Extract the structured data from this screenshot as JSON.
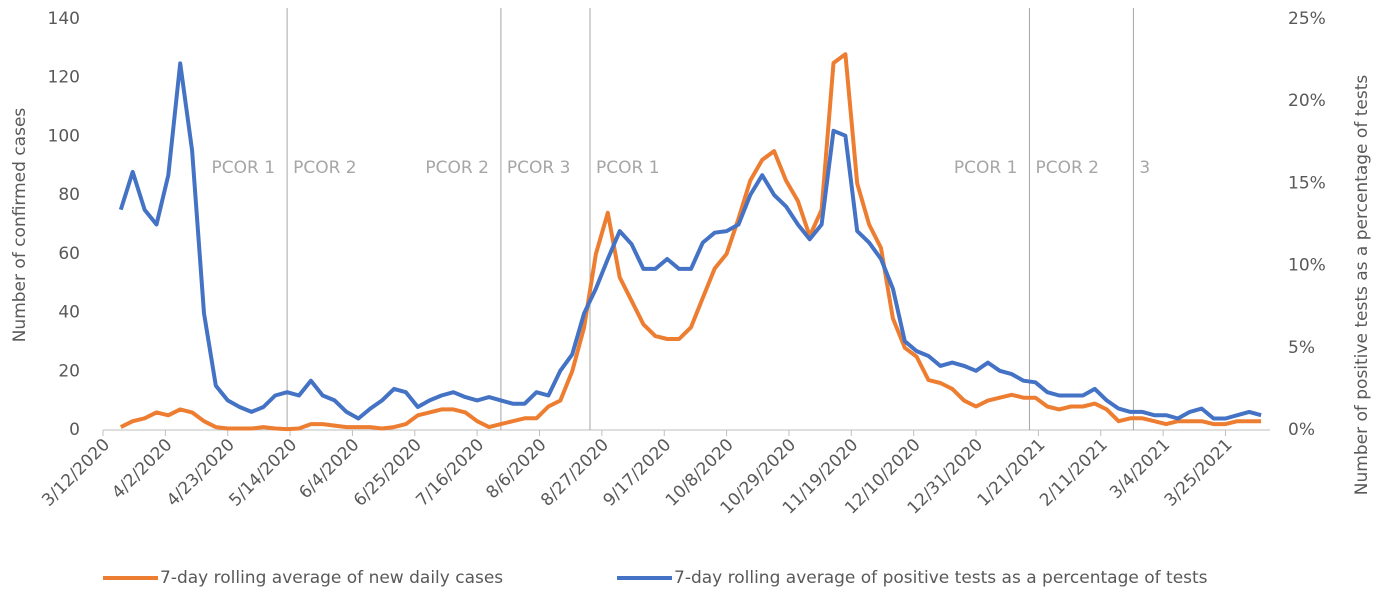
{
  "chart_data": {
    "type": "line",
    "y_label": "Number of confirmed cases",
    "y2_label": "Number of positive tests as a percentage of tests",
    "xlim": [
      "3/12/2020",
      "4/9/2021"
    ],
    "xticks": [
      "3/12/2020",
      "4/2/2020",
      "4/23/2020",
      "5/14/2020",
      "6/4/2020",
      "6/25/2020",
      "7/16/2020",
      "8/6/2020",
      "8/27/2020",
      "9/17/2020",
      "10/8/2020",
      "10/29/2020",
      "11/19/2020",
      "12/10/2020",
      "12/31/2020",
      "1/21/2021",
      "2/11/2021",
      "3/4/2021",
      "3/25/2021"
    ],
    "ylim": [
      0,
      140
    ],
    "yticks": [
      0,
      20,
      40,
      60,
      80,
      100,
      120,
      140
    ],
    "y2lim": [
      0,
      25
    ],
    "y2ticks": [
      {
        "value": 0,
        "label": "0%"
      },
      {
        "value": 5,
        "label": "5%"
      },
      {
        "value": 10,
        "label": "10%"
      },
      {
        "value": 15,
        "label": "15%"
      },
      {
        "value": 20,
        "label": "20%"
      },
      {
        "value": 25,
        "label": "25%"
      }
    ],
    "phase_lines": [
      {
        "x": "5/13/2020",
        "left": "PCOR 1",
        "right": "PCOR 2"
      },
      {
        "x": "7/24/2020",
        "left": "PCOR 2",
        "right": "PCOR 3"
      },
      {
        "x": "8/23/2020",
        "right": "PCOR 1"
      },
      {
        "x": "1/18/2021",
        "left": "PCOR 1",
        "right": "PCOR 2"
      },
      {
        "x": "2/22/2021",
        "right": "3"
      }
    ],
    "x": [
      "3/18/2020",
      "3/22/2020",
      "3/26/2020",
      "3/30/2020",
      "4/3/2020",
      "4/7/2020",
      "4/11/2020",
      "4/15/2020",
      "4/19/2020",
      "4/23/2020",
      "4/27/2020",
      "5/1/2020",
      "5/5/2020",
      "5/9/2020",
      "5/13/2020",
      "5/17/2020",
      "5/21/2020",
      "5/25/2020",
      "5/29/2020",
      "6/2/2020",
      "6/6/2020",
      "6/10/2020",
      "6/14/2020",
      "6/18/2020",
      "6/22/2020",
      "6/26/2020",
      "6/30/2020",
      "7/4/2020",
      "7/8/2020",
      "7/12/2020",
      "7/16/2020",
      "7/20/2020",
      "7/24/2020",
      "7/28/2020",
      "8/1/2020",
      "8/5/2020",
      "8/9/2020",
      "8/13/2020",
      "8/17/2020",
      "8/21/2020",
      "8/25/2020",
      "8/29/2020",
      "9/2/2020",
      "9/6/2020",
      "9/10/2020",
      "9/14/2020",
      "9/18/2020",
      "9/22/2020",
      "9/26/2020",
      "9/30/2020",
      "10/4/2020",
      "10/8/2020",
      "10/12/2020",
      "10/16/2020",
      "10/20/2020",
      "10/24/2020",
      "10/28/2020",
      "11/1/2020",
      "11/5/2020",
      "11/9/2020",
      "11/13/2020",
      "11/17/2020",
      "11/21/2020",
      "11/25/2020",
      "11/29/2020",
      "12/3/2020",
      "12/7/2020",
      "12/11/2020",
      "12/15/2020",
      "12/19/2020",
      "12/23/2020",
      "12/27/2020",
      "12/31/2020",
      "1/4/2021",
      "1/8/2021",
      "1/12/2021",
      "1/16/2021",
      "1/20/2021",
      "1/24/2021",
      "1/28/2021",
      "2/1/2021",
      "2/5/2021",
      "2/9/2021",
      "2/13/2021",
      "2/17/2021",
      "2/21/2021",
      "2/25/2021",
      "3/1/2021",
      "3/5/2021",
      "3/9/2021",
      "3/13/2021",
      "3/17/2021",
      "3/21/2021",
      "3/25/2021",
      "3/29/2021",
      "4/2/2021",
      "4/6/2021"
    ],
    "series": [
      {
        "name": "7-day rolling average of new daily cases",
        "color": "#ed7d31",
        "values": [
          1,
          3,
          4,
          6,
          5,
          7,
          6,
          3,
          1,
          0.5,
          0.5,
          0.5,
          1,
          0.5,
          0.3,
          0.5,
          2,
          2,
          1.5,
          1,
          1,
          1,
          0.5,
          1,
          2,
          5,
          6,
          7,
          7,
          6,
          3,
          1,
          2,
          3,
          4,
          4,
          8,
          10,
          20,
          35,
          60,
          74,
          52,
          44,
          36,
          32,
          31,
          31,
          35,
          45,
          55,
          60,
          72,
          85,
          92,
          95,
          85,
          78,
          66,
          75,
          125,
          128,
          84,
          70,
          62,
          38,
          28,
          25,
          17,
          16,
          14,
          10,
          8,
          10,
          11,
          12,
          11,
          11,
          8,
          7,
          8,
          8,
          9,
          7,
          3,
          4,
          4,
          3,
          2,
          3,
          3,
          3,
          2,
          2,
          3,
          3,
          3
        ]
      },
      {
        "name": "7-day rolling average of positive tests as a percentage of tests",
        "color": "#4472c4",
        "axis": "y2",
        "values": [
          13.4,
          15.7,
          13.4,
          12.5,
          15.5,
          22.3,
          17.0,
          7.1,
          2.7,
          1.8,
          1.4,
          1.1,
          1.4,
          2.1,
          2.3,
          2.1,
          3.0,
          2.1,
          1.8,
          1.1,
          0.7,
          1.3,
          1.8,
          2.5,
          2.3,
          1.4,
          1.8,
          2.1,
          2.3,
          2.0,
          1.8,
          2.0,
          1.8,
          1.6,
          1.6,
          2.3,
          2.1,
          3.6,
          4.6,
          7.1,
          8.6,
          10.4,
          12.1,
          11.3,
          9.8,
          9.8,
          10.4,
          9.8,
          9.8,
          11.4,
          12.0,
          12.1,
          12.5,
          14.3,
          15.5,
          14.3,
          13.6,
          12.5,
          11.6,
          12.5,
          18.2,
          17.9,
          12.1,
          11.4,
          10.4,
          8.6,
          5.4,
          4.8,
          4.5,
          3.9,
          4.1,
          3.9,
          3.6,
          4.1,
          3.6,
          3.4,
          3.0,
          2.9,
          2.3,
          2.1,
          2.1,
          2.1,
          2.5,
          1.8,
          1.3,
          1.1,
          1.1,
          0.9,
          0.9,
          0.7,
          1.1,
          1.3,
          0.7,
          0.7,
          0.9,
          1.1,
          0.9
        ]
      }
    ]
  }
}
